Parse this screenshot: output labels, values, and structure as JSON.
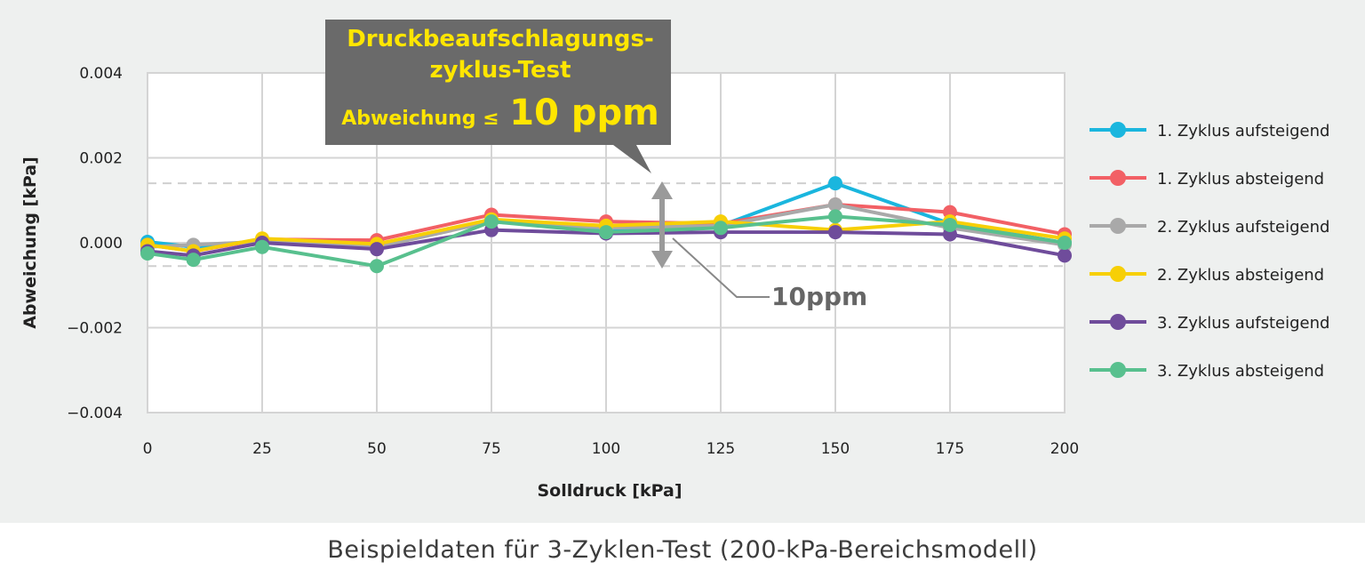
{
  "caption": "Beispieldaten für 3-Zyklen-Test (200-kPa-Bereichsmodell)",
  "callout": {
    "line1": "Druckbeaufschlagungs-",
    "line2": "zyklus-Test",
    "line3a": "Abweichung ≤",
    "line3b": "10 ppm",
    "background": "#6a6a6a",
    "text_color": "#ffe600"
  },
  "band_label": "10ppm",
  "chart_data": {
    "type": "line",
    "xlabel": "Solldruck [kPa]",
    "ylabel": "Abweichung [kPa]",
    "xlim": [
      0,
      200
    ],
    "ylim": [
      -0.004,
      0.004
    ],
    "x_ticks": [
      0,
      25,
      50,
      75,
      100,
      125,
      150,
      175,
      200
    ],
    "y_ticks": [
      0.004,
      0.002,
      0.0,
      -0.002,
      -0.004
    ],
    "y_tick_labels": [
      "0.004",
      "0.002",
      "0.000",
      "−0.002",
      "−0.004"
    ],
    "grid": true,
    "legend": "right",
    "band": [
      -0.00055,
      0.0014
    ],
    "x": [
      0,
      10,
      25,
      50,
      75,
      100,
      125,
      150,
      175,
      200
    ],
    "series": [
      {
        "name": "1. Zyklus aufsteigend",
        "color": "#1ab6de",
        "values": [
          2e-05,
          -0.0001,
          5e-05,
          -5e-05,
          0.0005,
          0.0003,
          0.0004,
          0.0014,
          0.00045,
          0.0
        ]
      },
      {
        "name": "1. Zyklus absteigend",
        "color": "#f26065",
        "values": [
          -5e-05,
          -0.0002,
          8e-05,
          6e-05,
          0.00066,
          0.0005,
          0.00045,
          0.0009,
          0.00072,
          0.0002
        ]
      },
      {
        "name": "2. Zyklus aufsteigend",
        "color": "#a9a9a9",
        "values": [
          -0.0001,
          -5e-05,
          3e-05,
          -0.0001,
          0.0005,
          0.00035,
          0.0004,
          0.0009,
          0.00035,
          -5e-05
        ]
      },
      {
        "name": "2. Zyklus absteigend",
        "color": "#f7cf06",
        "values": [
          -5e-05,
          -0.0002,
          0.0001,
          -3e-05,
          0.00055,
          0.0004,
          0.0005,
          0.0003,
          0.0005,
          0.0001
        ]
      },
      {
        "name": "3. Zyklus aufsteigend",
        "color": "#6f4c9b",
        "values": [
          -0.0002,
          -0.0003,
          0.0,
          -0.00015,
          0.0003,
          0.00022,
          0.00025,
          0.00025,
          0.0002,
          -0.0003
        ]
      },
      {
        "name": "3. Zyklus absteigend",
        "color": "#58c08e",
        "values": [
          -0.00025,
          -0.0004,
          -0.0001,
          -0.00055,
          0.0005,
          0.00025,
          0.00035,
          0.00062,
          0.00042,
          0.0
        ]
      }
    ]
  }
}
